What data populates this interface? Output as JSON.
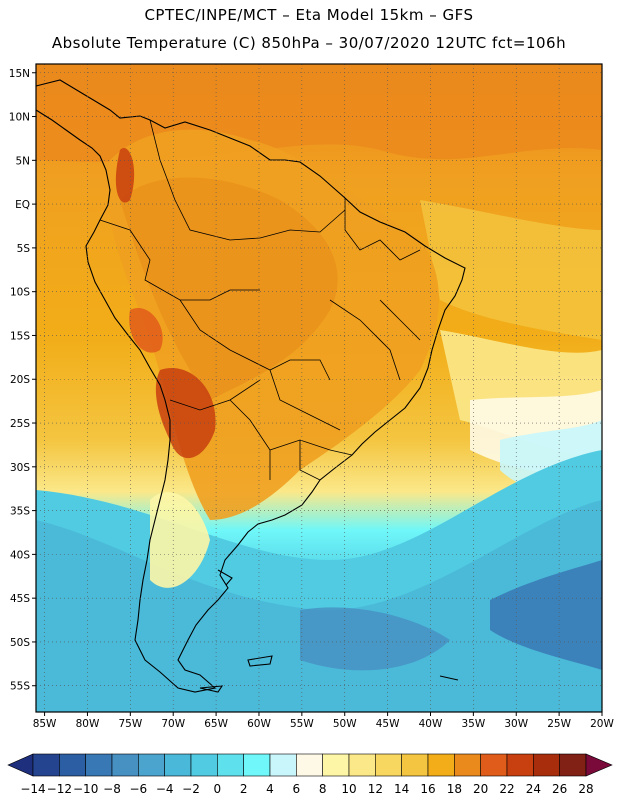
{
  "header": {
    "line1": "CPTEC/INPE/MCT –  Eta Model 15km – GFS",
    "line2": "Absolute Temperature (C) 850hPa – 30/07/2020 12UTC fct=106h"
  },
  "map": {
    "lat_labels": [
      "15N",
      "10N",
      "5N",
      "EQ",
      "5S",
      "10S",
      "15S",
      "20S",
      "25S",
      "30S",
      "35S",
      "40S",
      "45S",
      "50S",
      "55S"
    ],
    "lon_labels": [
      "85W",
      "80W",
      "75W",
      "70W",
      "65W",
      "60W",
      "55W",
      "50W",
      "45W",
      "40W",
      "35W",
      "30W",
      "25W",
      "20W"
    ],
    "lat_range": [
      16,
      -58
    ],
    "lon_range": [
      -86,
      -20
    ],
    "grid": "dotted"
  },
  "colorbar": {
    "labels": [
      "-14",
      "-12",
      "-10",
      "-8",
      "-6",
      "-4",
      "-2",
      "0",
      "2",
      "4",
      "6",
      "8",
      "10",
      "12",
      "14",
      "16",
      "18",
      "20",
      "22",
      "24",
      "26",
      "28"
    ],
    "colors": [
      "#25448f",
      "#2c5ea3",
      "#3878b4",
      "#4690c2",
      "#4aa4cd",
      "#4ab8d8",
      "#50cbe2",
      "#5fe0ed",
      "#6ff7f9",
      "#c8f6fb",
      "#fef9e6",
      "#fdf6a6",
      "#fbe889",
      "#f8d761",
      "#f4c540",
      "#f2ad18",
      "#eb8a1c",
      "#e05c1b",
      "#c8400f",
      "#a82d0d",
      "#812015"
    ],
    "low_arrow_color": "#1e2f7e",
    "high_arrow_color": "#7a0a3a"
  }
}
